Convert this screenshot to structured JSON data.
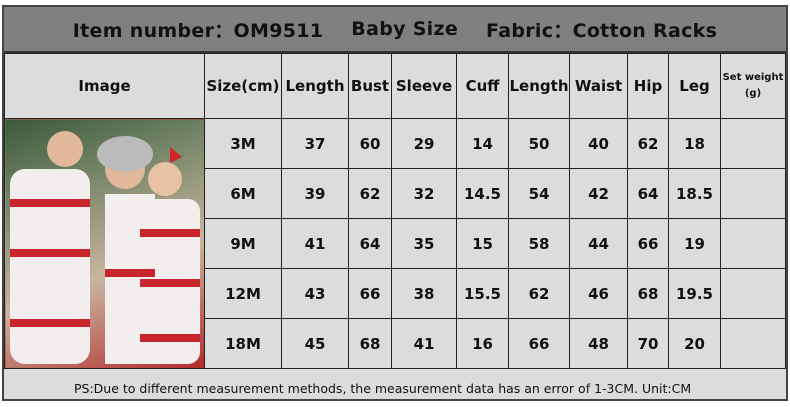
{
  "header": {
    "item": "Item number：OM9511",
    "size_type": "Baby Size",
    "fabric": "Fabric：Cotton Racks"
  },
  "columns": [
    "Image",
    "Size(cm)",
    "Length",
    "Bust",
    "Sleeve",
    "Cuff",
    "Length",
    "Waist",
    "Hip",
    "Leg",
    "Set weight (g)"
  ],
  "rows": [
    [
      "3M",
      "37",
      "60",
      "29",
      "14",
      "50",
      "40",
      "62",
      "18",
      ""
    ],
    [
      "6M",
      "39",
      "62",
      "32",
      "14.5",
      "54",
      "42",
      "64",
      "18.5",
      ""
    ],
    [
      "9M",
      "41",
      "64",
      "35",
      "15",
      "58",
      "44",
      "66",
      "19",
      ""
    ],
    [
      "12M",
      "43",
      "66",
      "38",
      "15.5",
      "62",
      "46",
      "68",
      "19.5",
      ""
    ],
    [
      "18M",
      "45",
      "68",
      "41",
      "16",
      "66",
      "48",
      "70",
      "20",
      ""
    ]
  ],
  "footer": "PS:Due to different measurement methods, the measurement data has an error of 1-3CM.   Unit:CM"
}
